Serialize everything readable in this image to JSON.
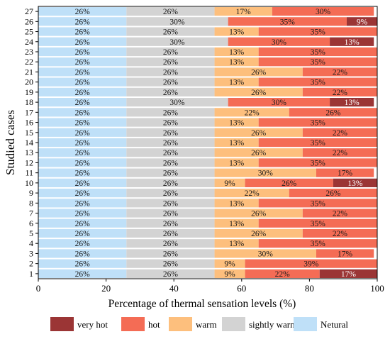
{
  "chart_data": {
    "type": "bar",
    "orientation": "horizontal",
    "stacked": true,
    "xlabel": "Percentage of thermal sensation levels (%)",
    "ylabel": "Studied cases",
    "xlim": [
      0,
      100
    ],
    "x_ticks": [
      "0",
      "20",
      "40",
      "60",
      "80",
      "100"
    ],
    "legend_position": "bottom",
    "grid": false,
    "categories": [
      "1",
      "2",
      "3",
      "4",
      "5",
      "6",
      "7",
      "8",
      "9",
      "10",
      "11",
      "12",
      "13",
      "14",
      "15",
      "16",
      "17",
      "18",
      "19",
      "20",
      "21",
      "22",
      "23",
      "24",
      "25",
      "26",
      "27"
    ],
    "series": [
      {
        "name": "Netural",
        "color": "#bfe0f8",
        "values": [
          26,
          26,
          26,
          26,
          26,
          26,
          26,
          26,
          26,
          26,
          26,
          26,
          26,
          26,
          26,
          26,
          26,
          26,
          26,
          26,
          26,
          26,
          26,
          26,
          26,
          26,
          26
        ],
        "labels": [
          "26%",
          "26%",
          "26%",
          "26%",
          "26%",
          "26%",
          "26%",
          "26%",
          "26%",
          "26%",
          "26%",
          "26%",
          "26%",
          "26%",
          "26%",
          "26%",
          "26%",
          "26%",
          "26%",
          "26%",
          "26%",
          "26%",
          "26%",
          "26%",
          "26%",
          "26%",
          "26%"
        ]
      },
      {
        "name": "sightly warm",
        "color": "#d3d3d3",
        "values": [
          26,
          26,
          26,
          26,
          26,
          26,
          26,
          26,
          26,
          26,
          26,
          26,
          26,
          26,
          26,
          26,
          26,
          30,
          26,
          26,
          26,
          26,
          26,
          30,
          26,
          30,
          26
        ],
        "labels": [
          "26%",
          "26%",
          "26%",
          "26%",
          "26%",
          "26%",
          "26%",
          "26%",
          "26%",
          "26%",
          "26%",
          "26%",
          "26%",
          "26%",
          "26%",
          "26%",
          "26%",
          "30%",
          "26%",
          "26%",
          "26%",
          "26%",
          "26%",
          "30%",
          "26%",
          "30%",
          "26%"
        ]
      },
      {
        "name": "warm",
        "color": "#fdbf7d",
        "values": [
          9,
          9,
          30,
          13,
          26,
          13,
          26,
          13,
          22,
          9,
          30,
          13,
          26,
          13,
          26,
          13,
          22,
          0,
          26,
          13,
          26,
          13,
          13,
          0,
          13,
          0,
          17
        ],
        "labels": [
          "9%",
          "9%",
          "30%",
          "13%",
          "26%",
          "13%",
          "26%",
          "13%",
          "22%",
          "9%",
          "30%",
          "13%",
          "26%",
          "13%",
          "26%",
          "13%",
          "22%",
          "",
          "26%",
          "13%",
          "26%",
          "13%",
          "13%",
          "",
          "13%",
          "",
          "17%"
        ]
      },
      {
        "name": "hot",
        "color": "#f46c55",
        "values": [
          22,
          39,
          17,
          35,
          22,
          35,
          22,
          35,
          26,
          26,
          17,
          35,
          22,
          35,
          22,
          35,
          26,
          30,
          22,
          35,
          22,
          35,
          35,
          30,
          35,
          35,
          30
        ],
        "labels": [
          "22%",
          "39%",
          "17%",
          "35%",
          "22%",
          "35%",
          "22%",
          "35%",
          "26%",
          "26%",
          "17%",
          "35%",
          "22%",
          "35%",
          "22%",
          "35%",
          "26%",
          "30%",
          "22%",
          "35%",
          "22%",
          "35%",
          "35%",
          "30%",
          "35%",
          "35%",
          "30%"
        ]
      },
      {
        "name": "very hot",
        "color": "#9b3535",
        "values": [
          17,
          0,
          0,
          0,
          0,
          0,
          0,
          0,
          0,
          13,
          0,
          0,
          0,
          0,
          0,
          0,
          0,
          13,
          0,
          0,
          0,
          0,
          0,
          13,
          0,
          9,
          0
        ],
        "labels": [
          "17%",
          "",
          "",
          "",
          "",
          "",
          "",
          "",
          "",
          "13%",
          "",
          "",
          "",
          "",
          "",
          "",
          "",
          "13%",
          "",
          "",
          "",
          "",
          "",
          "13%",
          "",
          "9%",
          ""
        ]
      }
    ],
    "legend_order": [
      "very hot",
      "hot",
      "warm",
      "sightly warm",
      "Netural"
    ]
  }
}
